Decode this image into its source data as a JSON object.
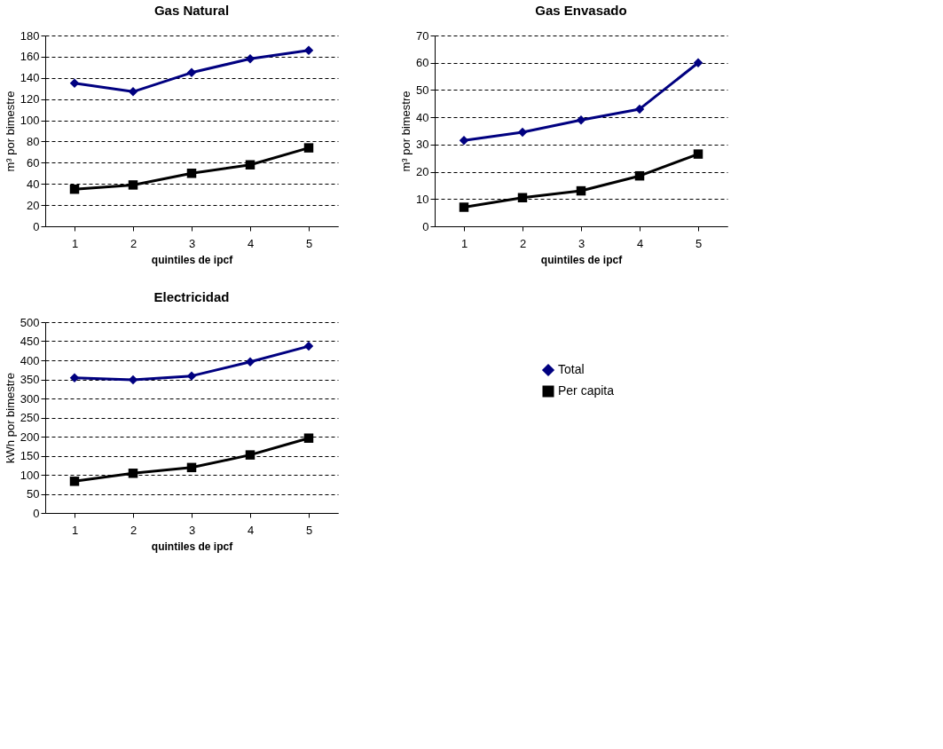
{
  "chart_data": [
    {
      "type": "line",
      "title": "Gas Natural",
      "xlabel": "quintiles de ipcf",
      "ylabel": "m³ por bimestre",
      "categories": [
        "1",
        "2",
        "3",
        "4",
        "5"
      ],
      "ylim": [
        0,
        180
      ],
      "yticks": [
        0,
        20,
        40,
        60,
        80,
        100,
        120,
        140,
        160,
        180
      ],
      "grid": "y",
      "legend": "right",
      "series": [
        {
          "name": "Total",
          "color": "#000080",
          "marker": "diamond",
          "values": [
            135,
            127,
            145,
            158,
            166
          ]
        },
        {
          "name": "Per capita",
          "color": "#000000",
          "marker": "square",
          "values": [
            35,
            39,
            50,
            58,
            74
          ]
        }
      ]
    },
    {
      "type": "line",
      "title": "Gas Envasado",
      "xlabel": "quintiles de ipcf",
      "ylabel": "m³ por bimestre",
      "categories": [
        "1",
        "2",
        "3",
        "4",
        "5"
      ],
      "ylim": [
        0,
        70
      ],
      "yticks": [
        0,
        10,
        20,
        30,
        40,
        50,
        60,
        70
      ],
      "grid": "y",
      "legend": "right",
      "series": [
        {
          "name": "Total",
          "color": "#000080",
          "marker": "diamond",
          "values": [
            31.5,
            34.5,
            39,
            43,
            60
          ]
        },
        {
          "name": "Per capita",
          "color": "#000000",
          "marker": "square",
          "values": [
            7,
            10.5,
            13,
            18.5,
            26.5
          ]
        }
      ]
    },
    {
      "type": "line",
      "title": "Electricidad",
      "xlabel": "quintiles de ipcf",
      "ylabel": "kWh por bimestre",
      "categories": [
        "1",
        "2",
        "3",
        "4",
        "5"
      ],
      "ylim": [
        0,
        500
      ],
      "yticks": [
        0,
        50,
        100,
        150,
        200,
        250,
        300,
        350,
        400,
        450,
        500
      ],
      "grid": "y",
      "legend": "right",
      "series": [
        {
          "name": "Total",
          "color": "#000080",
          "marker": "diamond",
          "values": [
            354,
            349,
            359,
            396,
            437
          ]
        },
        {
          "name": "Per capita",
          "color": "#000000",
          "marker": "square",
          "values": [
            83,
            104,
            119,
            152,
            196
          ]
        }
      ]
    }
  ]
}
